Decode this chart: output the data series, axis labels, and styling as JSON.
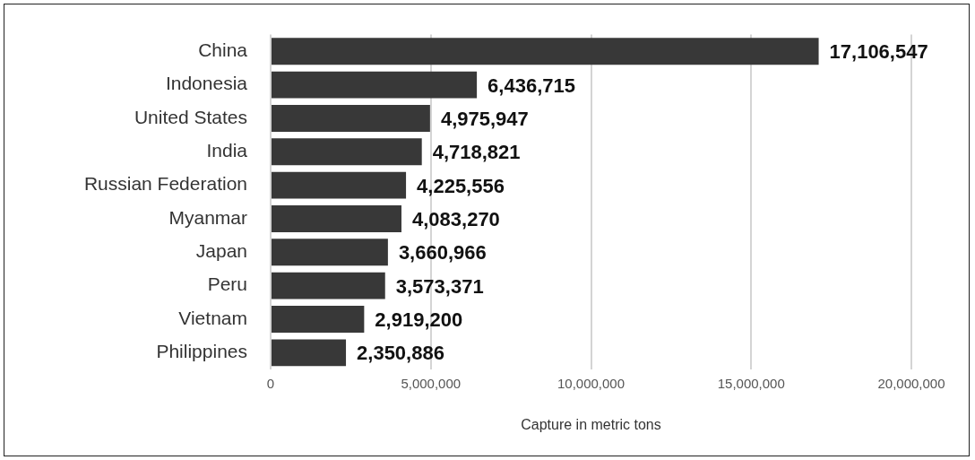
{
  "chart_data": {
    "type": "bar",
    "orientation": "horizontal",
    "xlabel": "Capture in metric tons",
    "categories": [
      "China",
      "Indonesia",
      "United States",
      "India",
      "Russian Federation",
      "Myanmar",
      "Japan",
      "Peru",
      "Vietnam",
      "Philippines"
    ],
    "values": [
      17106547,
      6436715,
      4975947,
      4718821,
      4225556,
      4083270,
      3660966,
      3573371,
      2919200,
      2350886
    ],
    "value_labels": [
      "17,106,547",
      "6,436,715",
      "4,975,947",
      "4,718,821",
      "4,225,556",
      "4,083,270",
      "3,660,966",
      "3,573,371",
      "2,919,200",
      "2,350,886"
    ],
    "color": "#383838",
    "xlim": [
      0,
      20000000
    ],
    "xticks": [
      {
        "value": 0,
        "label": "0"
      },
      {
        "value": 5000000,
        "label": "5,000,000"
      },
      {
        "value": 10000000,
        "label": "10,000,000"
      },
      {
        "value": 15000000,
        "label": "15,000,000"
      },
      {
        "value": 20000000,
        "label": "20,000,000"
      }
    ],
    "grid": "x",
    "legend": false
  }
}
